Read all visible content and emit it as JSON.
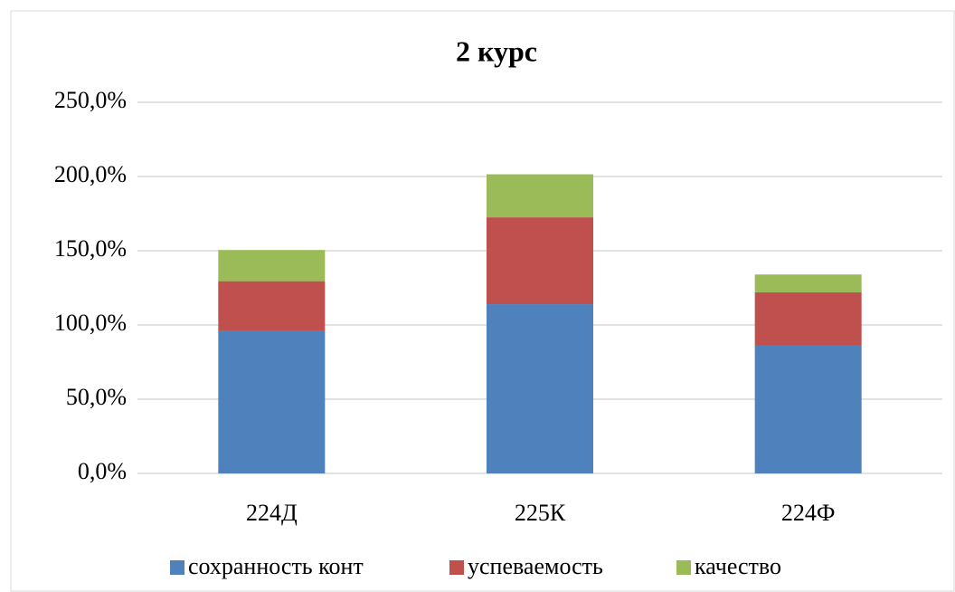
{
  "chart_data": {
    "type": "stacked_bar",
    "title": "2 курс",
    "categories": [
      "224Д",
      "225К",
      "224Ф"
    ],
    "series": [
      {
        "name": "сохранность конт",
        "color": "#4f81bd",
        "values": [
          96,
          114,
          86
        ]
      },
      {
        "name": "успеваемость",
        "color": "#c0504d",
        "values": [
          33.5,
          58.5,
          36
        ]
      },
      {
        "name": "качество",
        "color": "#9bbb59",
        "values": [
          21,
          29,
          12
        ]
      }
    ],
    "ylim": [
      0,
      250
    ],
    "yticks": [
      {
        "value": 0,
        "label": "0,0%"
      },
      {
        "value": 50,
        "label": "50,0%"
      },
      {
        "value": 100,
        "label": "100,0%"
      },
      {
        "value": 150,
        "label": "150,0%"
      },
      {
        "value": 200,
        "label": "200,0%"
      },
      {
        "value": 250,
        "label": "250,0%"
      }
    ],
    "grid": true,
    "legend": "bottom"
  }
}
